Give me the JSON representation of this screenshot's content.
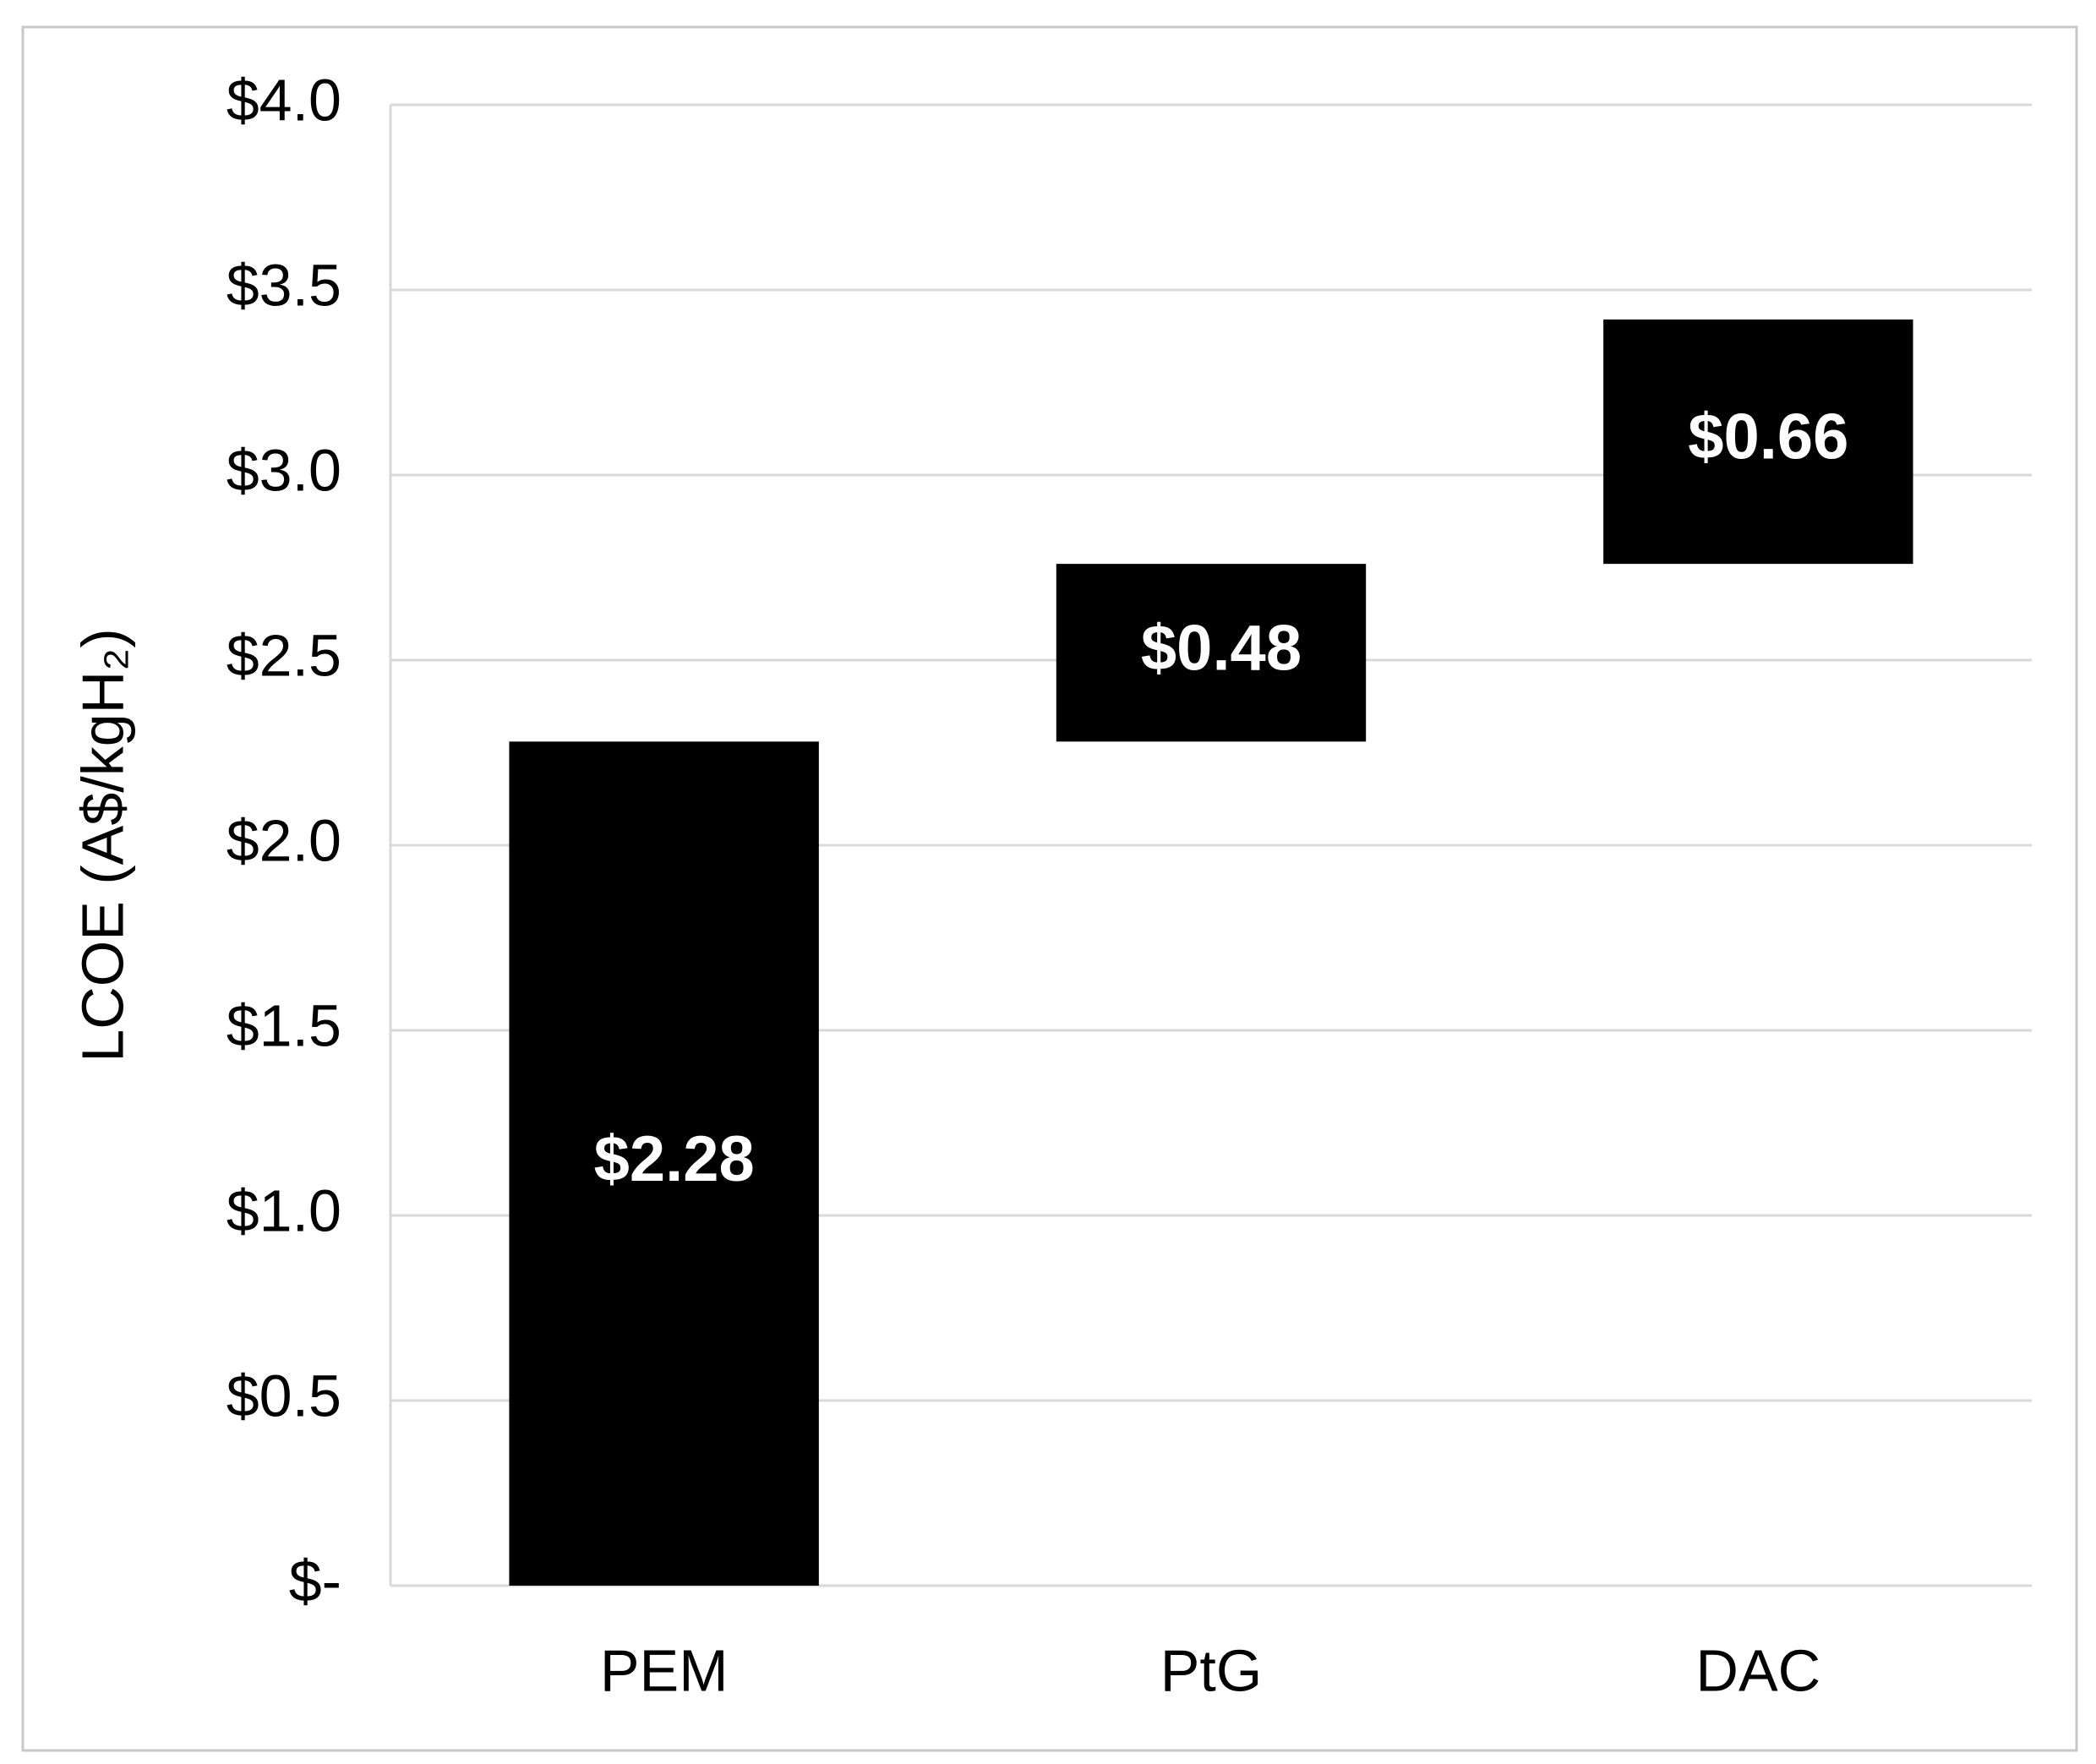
{
  "chart_data": {
    "type": "waterfall",
    "y_label": "LCOE (A$/kgH₂)",
    "categories": [
      "PEM",
      "PtG",
      "DAC"
    ],
    "values": [
      2.28,
      0.48,
      0.66
    ],
    "value_labels": [
      "$2.28",
      "$0.48",
      "$0.66"
    ],
    "color": "#000000",
    "ylim": [
      0,
      4
    ],
    "yticks": [
      {
        "value": 0,
        "label": "$-"
      },
      {
        "value": 0.5,
        "label": "$0.5"
      },
      {
        "value": 1,
        "label": "$1.0"
      },
      {
        "value": 1.5,
        "label": "$1.5"
      },
      {
        "value": 2,
        "label": "$2.0"
      },
      {
        "value": 2.5,
        "label": "$2.5"
      },
      {
        "value": 3,
        "label": "$3.0"
      },
      {
        "value": 3.5,
        "label": "$3.5"
      },
      {
        "value": 4,
        "label": "$4.0"
      }
    ],
    "grid": true
  }
}
